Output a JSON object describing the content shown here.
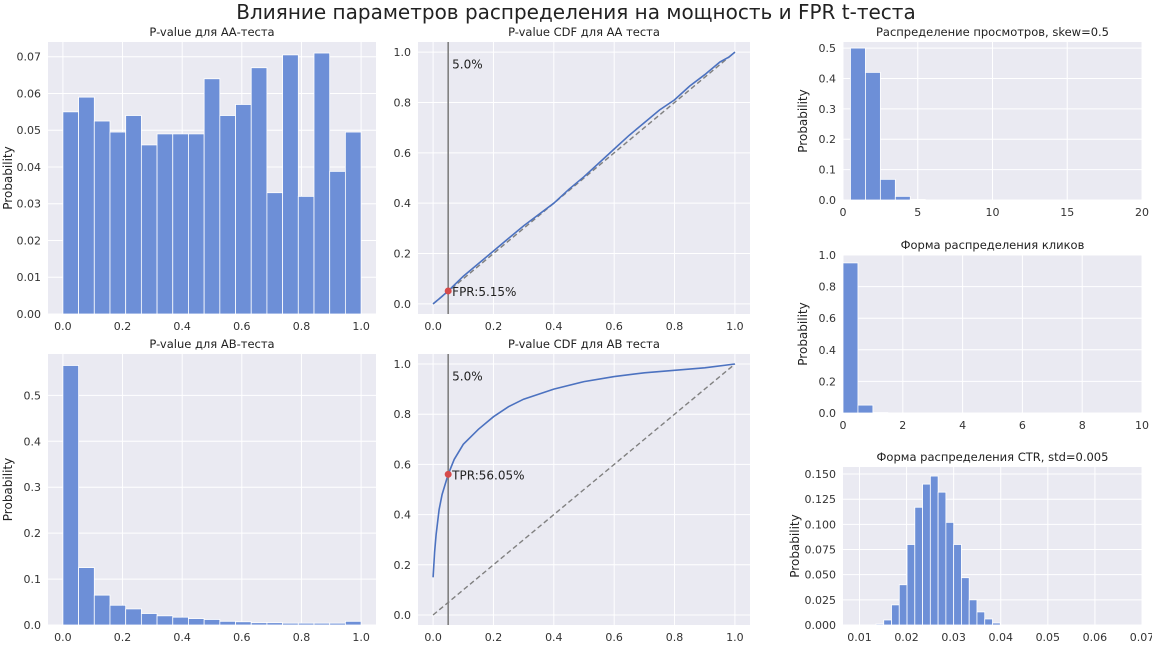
{
  "figure": {
    "title": "Влияние параметров распределения на мощность и FPR t-теста"
  },
  "colors": {
    "bar": "#6d8fd7",
    "line": "#4c72c0",
    "ref": "#808080",
    "vline": "#808080",
    "point": "#d64b4b",
    "bg": "#eaeaf2",
    "grid": "#ffffff"
  },
  "chart_data": [
    {
      "id": "aa_hist",
      "type": "bar",
      "title": "P-value для АА-теста",
      "xlabel": "",
      "ylabel": "Probability",
      "xlim": [
        -0.05,
        1.05
      ],
      "ylim": [
        0,
        0.074
      ],
      "xticks": [
        0,
        0.2,
        0.4,
        0.6,
        0.8,
        1.0
      ],
      "xticklabels": [
        "0.0",
        "0.2",
        "0.4",
        "0.6",
        "0.8",
        "1.0"
      ],
      "yticks": [
        0,
        0.01,
        0.02,
        0.03,
        0.04,
        0.05,
        0.06,
        0.07
      ],
      "yticklabels": [
        "0.00",
        "0.01",
        "0.02",
        "0.03",
        "0.04",
        "0.05",
        "0.06",
        "0.07"
      ],
      "bin_start": 0,
      "bin_width": 0.05263,
      "values": [
        0.055,
        0.059,
        0.0525,
        0.0495,
        0.054,
        0.046,
        0.049,
        0.049,
        0.049,
        0.064,
        0.054,
        0.057,
        0.067,
        0.033,
        0.0705,
        0.032,
        0.071,
        0.0388,
        0.0495
      ]
    },
    {
      "id": "aa_cdf",
      "type": "line",
      "title": "P-value CDF для АА теста",
      "xlabel": "",
      "ylabel": "",
      "xlim": [
        -0.05,
        1.05
      ],
      "ylim": [
        -0.04,
        1.04
      ],
      "xticks": [
        0,
        0.2,
        0.4,
        0.6,
        0.8,
        1.0
      ],
      "xticklabels": [
        "0.0",
        "0.2",
        "0.4",
        "0.6",
        "0.8",
        "1.0"
      ],
      "yticks": [
        0,
        0.2,
        0.4,
        0.6,
        0.8,
        1.0
      ],
      "yticklabels": [
        "0.0",
        "0.2",
        "0.4",
        "0.6",
        "0.8",
        "1.0"
      ],
      "series": [
        {
          "x": [
            0,
            0.02,
            0.05,
            0.1,
            0.15,
            0.2,
            0.25,
            0.3,
            0.35,
            0.4,
            0.45,
            0.5,
            0.55,
            0.6,
            0.65,
            0.7,
            0.75,
            0.8,
            0.85,
            0.9,
            0.95,
            0.98,
            1.0
          ],
          "y": [
            0,
            0.02,
            0.0515,
            0.11,
            0.16,
            0.21,
            0.26,
            0.31,
            0.355,
            0.4,
            0.455,
            0.505,
            0.56,
            0.615,
            0.67,
            0.72,
            0.77,
            0.81,
            0.865,
            0.91,
            0.96,
            0.98,
            1.0
          ]
        }
      ],
      "reference_line": {
        "x": [
          0,
          1
        ],
        "y": [
          0,
          1
        ]
      },
      "vline": {
        "x": 0.05,
        "label": "5.0%"
      },
      "point": {
        "x": 0.05,
        "y": 0.0515,
        "label": "FPR:5.15%"
      }
    },
    {
      "id": "views_hist",
      "type": "bar",
      "title": "Распределение просмотров, skew=0.5",
      "xlabel": "",
      "ylabel": "Probability",
      "xlim": [
        0,
        20
      ],
      "ylim": [
        0,
        0.52
      ],
      "xticks": [
        0,
        5,
        10,
        15,
        20
      ],
      "xticklabels": [
        "0",
        "5",
        "10",
        "15",
        "20"
      ],
      "yticks": [
        0,
        0.1,
        0.2,
        0.3,
        0.4,
        0.5
      ],
      "yticklabels": [
        "0.0",
        "0.1",
        "0.2",
        "0.3",
        "0.4",
        "0.5"
      ],
      "bin_start": 0.5,
      "bin_width": 1,
      "values": [
        0.5,
        0.42,
        0.068,
        0.012,
        0.002
      ]
    },
    {
      "id": "aa_ab_hist",
      "type": "bar",
      "title": "P-value для АВ-теста",
      "xlabel": "",
      "ylabel": "Probability",
      "xlim": [
        -0.05,
        1.05
      ],
      "ylim": [
        0,
        0.59
      ],
      "xticks": [
        0,
        0.2,
        0.4,
        0.6,
        0.8,
        1.0
      ],
      "xticklabels": [
        "0.0",
        "0.2",
        "0.4",
        "0.6",
        "0.8",
        "1.0"
      ],
      "yticks": [
        0,
        0.1,
        0.2,
        0.3,
        0.4,
        0.5
      ],
      "yticklabels": [
        "0.0",
        "0.1",
        "0.2",
        "0.3",
        "0.4",
        "0.5"
      ],
      "bin_start": 0,
      "bin_width": 0.05263,
      "values": [
        0.565,
        0.125,
        0.065,
        0.043,
        0.035,
        0.025,
        0.02,
        0.017,
        0.014,
        0.012,
        0.008,
        0.007,
        0.005,
        0.005,
        0.004,
        0.004,
        0.004,
        0.004,
        0.008
      ]
    },
    {
      "id": "ab_cdf",
      "type": "line",
      "title": "P-value CDF для АВ теста",
      "xlabel": "",
      "ylabel": "",
      "xlim": [
        -0.05,
        1.05
      ],
      "ylim": [
        -0.04,
        1.04
      ],
      "xticks": [
        0,
        0.2,
        0.4,
        0.6,
        0.8,
        1.0
      ],
      "xticklabels": [
        "0.0",
        "0.2",
        "0.4",
        "0.6",
        "0.8",
        "1.0"
      ],
      "yticks": [
        0,
        0.2,
        0.4,
        0.6,
        0.8,
        1.0
      ],
      "yticklabels": [
        "0.0",
        "0.2",
        "0.4",
        "0.6",
        "0.8",
        "1.0"
      ],
      "series": [
        {
          "x": [
            0,
            0.005,
            0.01,
            0.02,
            0.03,
            0.05,
            0.07,
            0.1,
            0.15,
            0.2,
            0.25,
            0.3,
            0.4,
            0.5,
            0.6,
            0.7,
            0.8,
            0.9,
            1.0
          ],
          "y": [
            0.15,
            0.25,
            0.32,
            0.42,
            0.48,
            0.5605,
            0.62,
            0.68,
            0.74,
            0.79,
            0.83,
            0.86,
            0.9,
            0.93,
            0.95,
            0.965,
            0.975,
            0.985,
            1.0
          ]
        }
      ],
      "reference_line": {
        "x": [
          0,
          1
        ],
        "y": [
          0,
          1
        ]
      },
      "vline": {
        "x": 0.05,
        "label": "5.0%"
      },
      "point": {
        "x": 0.05,
        "y": 0.5605,
        "label": "TPR:56.05%"
      }
    },
    {
      "id": "clicks_hist",
      "type": "bar",
      "title": "Форма распределения кликов",
      "xlabel": "",
      "ylabel": "Probability",
      "xlim": [
        0,
        10
      ],
      "ylim": [
        0,
        1.0
      ],
      "xticks": [
        0,
        2,
        4,
        6,
        8,
        10
      ],
      "xticklabels": [
        "0",
        "2",
        "4",
        "6",
        "8",
        "10"
      ],
      "yticks": [
        0,
        0.2,
        0.4,
        0.6,
        0.8,
        1.0
      ],
      "yticklabels": [
        "0.0",
        "0.2",
        "0.4",
        "0.6",
        "0.8",
        "1.0"
      ],
      "bin_start": 0,
      "bin_width": 0.5,
      "values": [
        0.95,
        0.05,
        0.003
      ]
    },
    {
      "id": "ctr_hist",
      "type": "bar",
      "title": "Форма распределения CTR, std=0.005",
      "xlabel": "",
      "ylabel": "Probability",
      "xlim": [
        0.0065,
        0.07
      ],
      "ylim": [
        0,
        0.157
      ],
      "xticks": [
        0.01,
        0.02,
        0.03,
        0.04,
        0.05,
        0.06,
        0.07
      ],
      "xticklabels": [
        "0.01",
        "0.02",
        "0.03",
        "0.04",
        "0.05",
        "0.06",
        "0.07"
      ],
      "yticks": [
        0,
        0.025,
        0.05,
        0.075,
        0.1,
        0.125,
        0.15
      ],
      "yticklabels": [
        "0.000",
        "0.025",
        "0.050",
        "0.075",
        "0.100",
        "0.125",
        "0.150"
      ],
      "bin_start": 0.0135,
      "bin_width": 0.00165,
      "values": [
        0.001,
        0.005,
        0.02,
        0.04,
        0.08,
        0.117,
        0.14,
        0.148,
        0.132,
        0.102,
        0.08,
        0.047,
        0.025,
        0.013,
        0.006,
        0.002
      ]
    }
  ]
}
